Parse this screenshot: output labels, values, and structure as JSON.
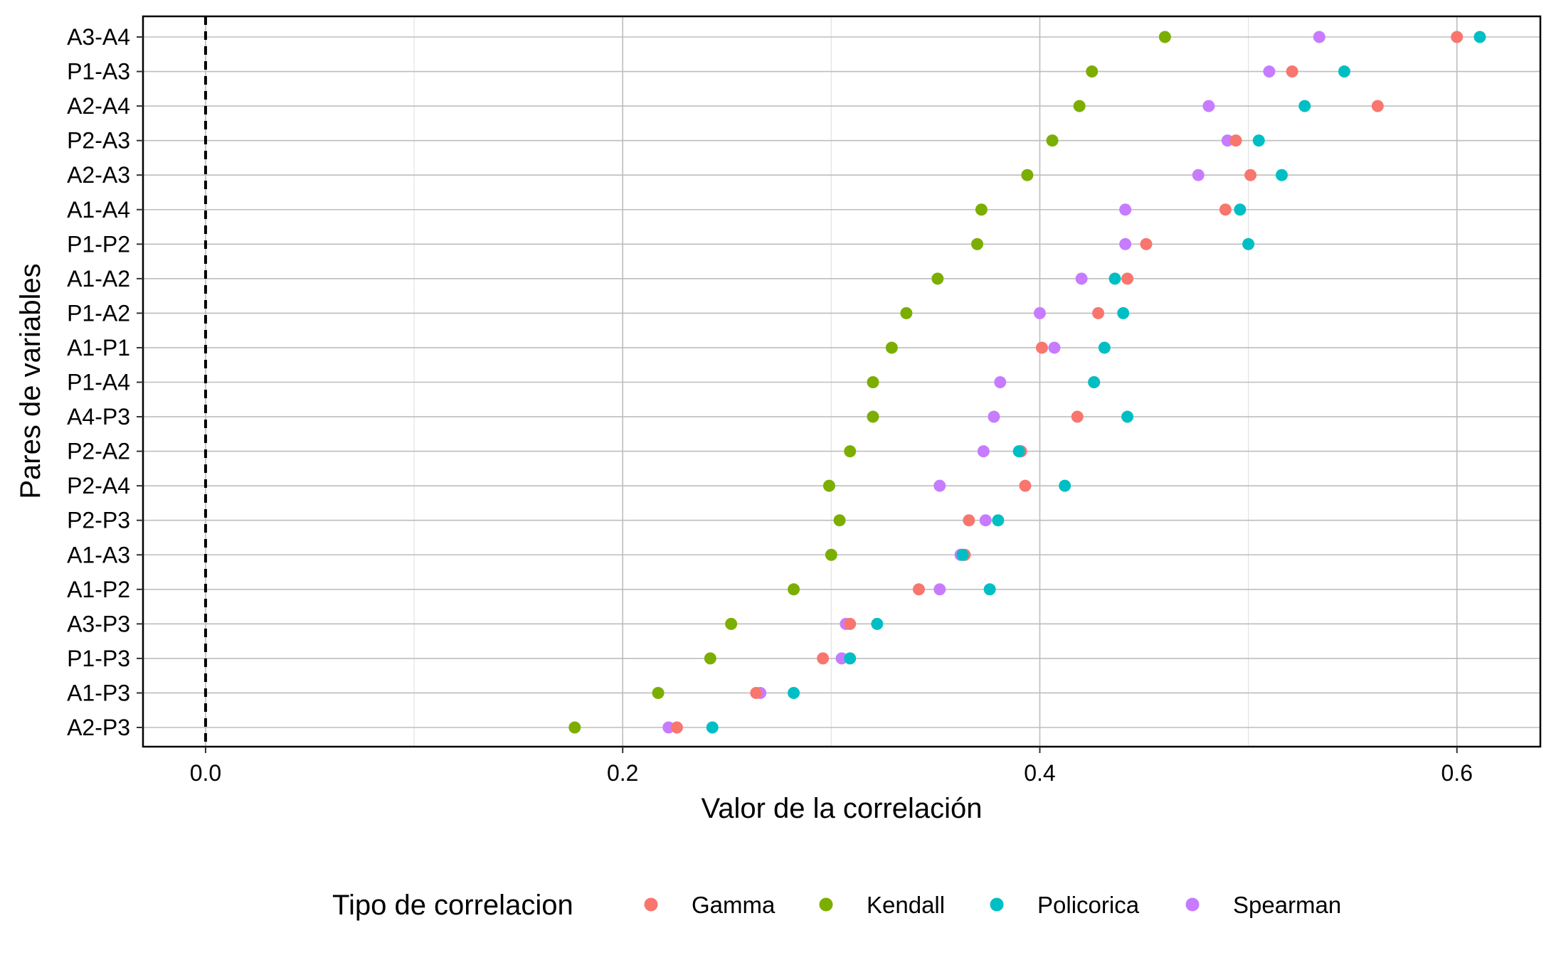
{
  "chart_data": {
    "type": "scatter",
    "xlabel": "Valor de la correlación",
    "ylabel": "Pares de variables",
    "xlim": [
      -0.03,
      0.64
    ],
    "x_ticks": [
      0.0,
      0.2,
      0.4,
      0.6
    ],
    "x_tick_labels": [
      "0.0",
      "0.2",
      "0.4",
      "0.6"
    ],
    "reference_line": {
      "x": 0,
      "style": "dashed"
    },
    "grid": true,
    "legend_position": "bottom",
    "legend": {
      "title": "Tipo de correlacion",
      "entries": [
        {
          "name": "Gamma",
          "color": "#F8766D"
        },
        {
          "name": "Kendall",
          "color": "#7CAE00"
        },
        {
          "name": "Policorica",
          "color": "#00BFC4"
        },
        {
          "name": "Spearman",
          "color": "#C77CFF"
        }
      ]
    },
    "categories": [
      "A3-A4",
      "P1-A3",
      "A2-A4",
      "P2-A3",
      "A2-A3",
      "A1-A4",
      "P1-P2",
      "A1-A2",
      "P1-A2",
      "A1-P1",
      "P1-A4",
      "A4-P3",
      "P2-A2",
      "P2-A4",
      "P2-P3",
      "A1-A3",
      "A1-P2",
      "A3-P3",
      "P1-P3",
      "A1-P3",
      "A2-P3"
    ],
    "series": [
      {
        "name": "Kendall",
        "color": "#7CAE00",
        "values": [
          0.46,
          0.425,
          0.419,
          0.406,
          0.394,
          0.372,
          0.37,
          0.351,
          0.336,
          0.329,
          0.32,
          0.32,
          0.309,
          0.299,
          0.304,
          0.3,
          0.282,
          0.252,
          0.242,
          0.217,
          0.177
        ]
      },
      {
        "name": "Spearman",
        "color": "#C77CFF",
        "values": [
          0.534,
          0.51,
          0.481,
          0.49,
          0.476,
          0.441,
          0.441,
          0.42,
          0.4,
          0.407,
          0.381,
          0.378,
          0.373,
          0.352,
          0.374,
          0.362,
          0.352,
          0.307,
          0.305,
          0.266,
          0.222
        ]
      },
      {
        "name": "Gamma",
        "color": "#F8766D",
        "values": [
          0.6,
          0.521,
          0.562,
          0.494,
          0.501,
          0.489,
          0.451,
          0.442,
          0.428,
          0.401,
          0.426,
          0.418,
          0.391,
          0.393,
          0.366,
          0.364,
          0.342,
          0.309,
          0.296,
          0.264,
          0.226
        ]
      },
      {
        "name": "Policorica",
        "color": "#00BFC4",
        "values": [
          0.611,
          0.546,
          0.527,
          0.505,
          0.516,
          0.496,
          0.5,
          0.436,
          0.44,
          0.431,
          0.426,
          0.442,
          0.39,
          0.412,
          0.38,
          0.363,
          0.376,
          0.322,
          0.309,
          0.282,
          0.243
        ]
      }
    ]
  }
}
